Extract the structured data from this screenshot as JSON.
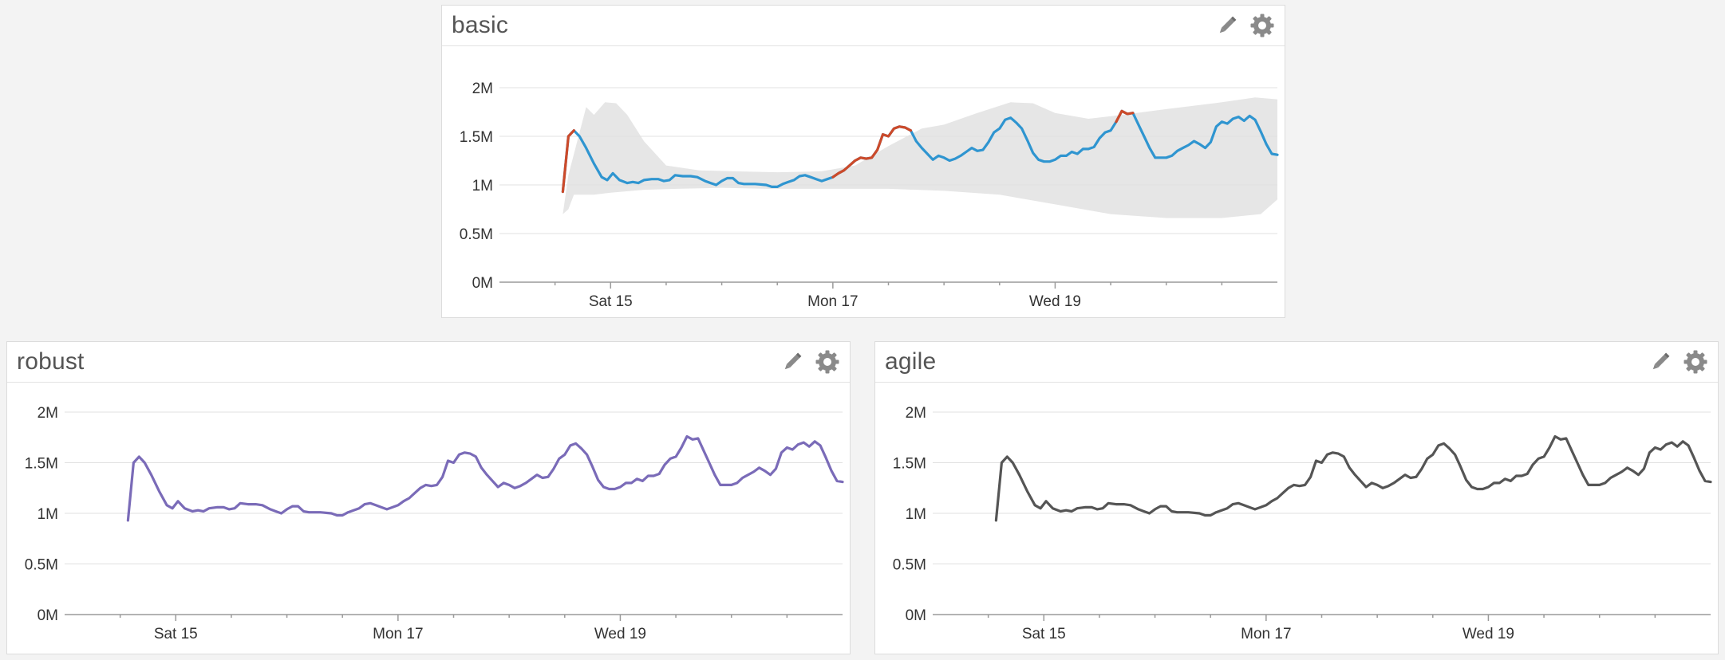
{
  "widgets": [
    {
      "id": "basic",
      "title": "basic",
      "chart_data": {
        "type": "line",
        "x_ticks": [
          {
            "day": 1,
            "label": "Sat 15"
          },
          {
            "day": 3,
            "label": "Mon 17"
          },
          {
            "day": 5,
            "label": "Wed 19"
          }
        ],
        "xlim": [
          0,
          7
        ],
        "y_ticks": [
          {
            "value": 0,
            "label": "0M"
          },
          {
            "value": 0.5,
            "label": "0.5M"
          },
          {
            "value": 1,
            "label": "1M"
          },
          {
            "value": 1.5,
            "label": "1.5M"
          },
          {
            "value": 2,
            "label": "2M"
          }
        ],
        "ylim": [
          0,
          2
        ],
        "grid": true,
        "line_color": "#2f95d0",
        "anomaly_color": "#cc4a2a",
        "band_color": "#e6e6e6",
        "band_lower": [
          [
            0.57,
            0.7
          ],
          [
            0.62,
            0.75
          ],
          [
            0.67,
            0.9
          ],
          [
            0.75,
            0.9
          ],
          [
            0.85,
            0.9
          ],
          [
            1.0,
            0.92
          ],
          [
            1.3,
            0.95
          ],
          [
            1.6,
            0.96
          ],
          [
            2.0,
            0.97
          ],
          [
            2.4,
            0.96
          ],
          [
            3.0,
            0.96
          ],
          [
            3.5,
            0.96
          ],
          [
            4.0,
            0.94
          ],
          [
            4.5,
            0.9
          ],
          [
            5.0,
            0.8
          ],
          [
            5.5,
            0.7
          ],
          [
            6.0,
            0.66
          ],
          [
            6.5,
            0.66
          ],
          [
            6.85,
            0.7
          ],
          [
            7.0,
            0.85
          ]
        ],
        "band_upper": [
          [
            0.57,
            0.7
          ],
          [
            0.62,
            1.1
          ],
          [
            0.7,
            1.45
          ],
          [
            0.78,
            1.8
          ],
          [
            0.85,
            1.72
          ],
          [
            0.95,
            1.85
          ],
          [
            1.05,
            1.84
          ],
          [
            1.15,
            1.72
          ],
          [
            1.3,
            1.45
          ],
          [
            1.5,
            1.2
          ],
          [
            1.8,
            1.15
          ],
          [
            2.1,
            1.14
          ],
          [
            2.5,
            1.13
          ],
          [
            2.9,
            1.14
          ],
          [
            3.2,
            1.2
          ],
          [
            3.5,
            1.4
          ],
          [
            3.8,
            1.58
          ],
          [
            4.0,
            1.62
          ],
          [
            4.3,
            1.74
          ],
          [
            4.6,
            1.85
          ],
          [
            4.8,
            1.84
          ],
          [
            5.0,
            1.74
          ],
          [
            5.3,
            1.68
          ],
          [
            5.6,
            1.72
          ],
          [
            6.0,
            1.78
          ],
          [
            6.5,
            1.85
          ],
          [
            6.8,
            1.9
          ],
          [
            7.0,
            1.88
          ]
        ],
        "anomaly_ranges": [
          [
            0.55,
            0.7
          ],
          [
            3.0,
            3.7
          ],
          [
            5.55,
            5.7
          ]
        ],
        "series": [
          {
            "points": [
              [
                0.57,
                0.93
              ],
              [
                0.62,
                1.5
              ],
              [
                0.67,
                1.56
              ],
              [
                0.72,
                1.5
              ],
              [
                0.78,
                1.38
              ],
              [
                0.85,
                1.22
              ],
              [
                0.92,
                1.08
              ],
              [
                0.97,
                1.05
              ],
              [
                1.02,
                1.12
              ],
              [
                1.08,
                1.05
              ],
              [
                1.15,
                1.02
              ],
              [
                1.2,
                1.03
              ],
              [
                1.25,
                1.02
              ],
              [
                1.3,
                1.05
              ],
              [
                1.37,
                1.06
              ],
              [
                1.43,
                1.06
              ],
              [
                1.48,
                1.04
              ],
              [
                1.53,
                1.05
              ],
              [
                1.58,
                1.1
              ],
              [
                1.65,
                1.09
              ],
              [
                1.72,
                1.09
              ],
              [
                1.78,
                1.08
              ],
              [
                1.85,
                1.04
              ],
              [
                1.9,
                1.02
              ],
              [
                1.95,
                1.0
              ],
              [
                2.0,
                1.04
              ],
              [
                2.05,
                1.07
              ],
              [
                2.1,
                1.07
              ],
              [
                2.15,
                1.02
              ],
              [
                2.2,
                1.01
              ],
              [
                2.3,
                1.01
              ],
              [
                2.4,
                1.0
              ],
              [
                2.45,
                0.98
              ],
              [
                2.5,
                0.98
              ],
              [
                2.55,
                1.01
              ],
              [
                2.6,
                1.03
              ],
              [
                2.65,
                1.05
              ],
              [
                2.7,
                1.09
              ],
              [
                2.75,
                1.1
              ],
              [
                2.8,
                1.08
              ],
              [
                2.85,
                1.06
              ],
              [
                2.9,
                1.04
              ],
              [
                2.95,
                1.06
              ],
              [
                3.0,
                1.08
              ],
              [
                3.05,
                1.12
              ],
              [
                3.1,
                1.15
              ],
              [
                3.15,
                1.2
              ],
              [
                3.2,
                1.25
              ],
              [
                3.25,
                1.28
              ],
              [
                3.3,
                1.27
              ],
              [
                3.35,
                1.28
              ],
              [
                3.4,
                1.36
              ],
              [
                3.45,
                1.52
              ],
              [
                3.5,
                1.5
              ],
              [
                3.55,
                1.58
              ],
              [
                3.6,
                1.6
              ],
              [
                3.65,
                1.59
              ],
              [
                3.7,
                1.56
              ],
              [
                3.75,
                1.45
              ],
              [
                3.8,
                1.38
              ],
              [
                3.85,
                1.32
              ],
              [
                3.9,
                1.26
              ],
              [
                3.95,
                1.3
              ],
              [
                4.0,
                1.28
              ],
              [
                4.05,
                1.25
              ],
              [
                4.1,
                1.27
              ],
              [
                4.15,
                1.3
              ],
              [
                4.2,
                1.34
              ],
              [
                4.25,
                1.38
              ],
              [
                4.3,
                1.35
              ],
              [
                4.35,
                1.36
              ],
              [
                4.4,
                1.44
              ],
              [
                4.45,
                1.54
              ],
              [
                4.5,
                1.58
              ],
              [
                4.55,
                1.67
              ],
              [
                4.6,
                1.69
              ],
              [
                4.65,
                1.64
              ],
              [
                4.7,
                1.58
              ],
              [
                4.75,
                1.46
              ],
              [
                4.8,
                1.33
              ],
              [
                4.85,
                1.26
              ],
              [
                4.9,
                1.24
              ],
              [
                4.95,
                1.24
              ],
              [
                5.0,
                1.26
              ],
              [
                5.05,
                1.3
              ],
              [
                5.1,
                1.3
              ],
              [
                5.15,
                1.34
              ],
              [
                5.2,
                1.32
              ],
              [
                5.25,
                1.37
              ],
              [
                5.3,
                1.37
              ],
              [
                5.35,
                1.39
              ],
              [
                5.4,
                1.48
              ],
              [
                5.45,
                1.54
              ],
              [
                5.5,
                1.56
              ],
              [
                5.55,
                1.65
              ],
              [
                5.6,
                1.76
              ],
              [
                5.65,
                1.73
              ],
              [
                5.7,
                1.74
              ],
              [
                5.75,
                1.62
              ],
              [
                5.8,
                1.5
              ],
              [
                5.85,
                1.38
              ],
              [
                5.9,
                1.28
              ],
              [
                5.95,
                1.28
              ],
              [
                6.0,
                1.28
              ],
              [
                6.05,
                1.3
              ],
              [
                6.1,
                1.35
              ],
              [
                6.15,
                1.38
              ],
              [
                6.2,
                1.41
              ],
              [
                6.25,
                1.45
              ],
              [
                6.3,
                1.42
              ],
              [
                6.35,
                1.38
              ],
              [
                6.4,
                1.44
              ],
              [
                6.45,
                1.6
              ],
              [
                6.5,
                1.65
              ],
              [
                6.55,
                1.63
              ],
              [
                6.6,
                1.68
              ],
              [
                6.65,
                1.7
              ],
              [
                6.7,
                1.66
              ],
              [
                6.75,
                1.71
              ],
              [
                6.8,
                1.67
              ],
              [
                6.85,
                1.55
              ],
              [
                6.9,
                1.42
              ],
              [
                6.95,
                1.32
              ],
              [
                7.0,
                1.31
              ]
            ]
          }
        ]
      }
    },
    {
      "id": "robust",
      "title": "robust",
      "chart_data": {
        "type": "line",
        "x_ticks": [
          {
            "day": 1,
            "label": "Sat 15"
          },
          {
            "day": 3,
            "label": "Mon 17"
          },
          {
            "day": 5,
            "label": "Wed 19"
          }
        ],
        "xlim": [
          0,
          7
        ],
        "y_ticks": [
          {
            "value": 0,
            "label": "0M"
          },
          {
            "value": 0.5,
            "label": "0.5M"
          },
          {
            "value": 1,
            "label": "1M"
          },
          {
            "value": 1.5,
            "label": "1.5M"
          },
          {
            "value": 2,
            "label": "2M"
          }
        ],
        "ylim": [
          0,
          2
        ],
        "grid": true,
        "line_color": "#7a6bb8",
        "series_ref": "basic"
      }
    },
    {
      "id": "agile",
      "title": "agile",
      "chart_data": {
        "type": "line",
        "x_ticks": [
          {
            "day": 1,
            "label": "Sat 15"
          },
          {
            "day": 3,
            "label": "Mon 17"
          },
          {
            "day": 5,
            "label": "Wed 19"
          }
        ],
        "xlim": [
          0,
          7
        ],
        "y_ticks": [
          {
            "value": 0,
            "label": "0M"
          },
          {
            "value": 0.5,
            "label": "0.5M"
          },
          {
            "value": 1,
            "label": "1M"
          },
          {
            "value": 1.5,
            "label": "1.5M"
          },
          {
            "value": 2,
            "label": "2M"
          }
        ],
        "ylim": [
          0,
          2
        ],
        "grid": true,
        "line_color": "#555555",
        "series_ref": "basic"
      }
    }
  ],
  "icons": {
    "edit": "pencil-icon",
    "settings": "gear-icon"
  }
}
